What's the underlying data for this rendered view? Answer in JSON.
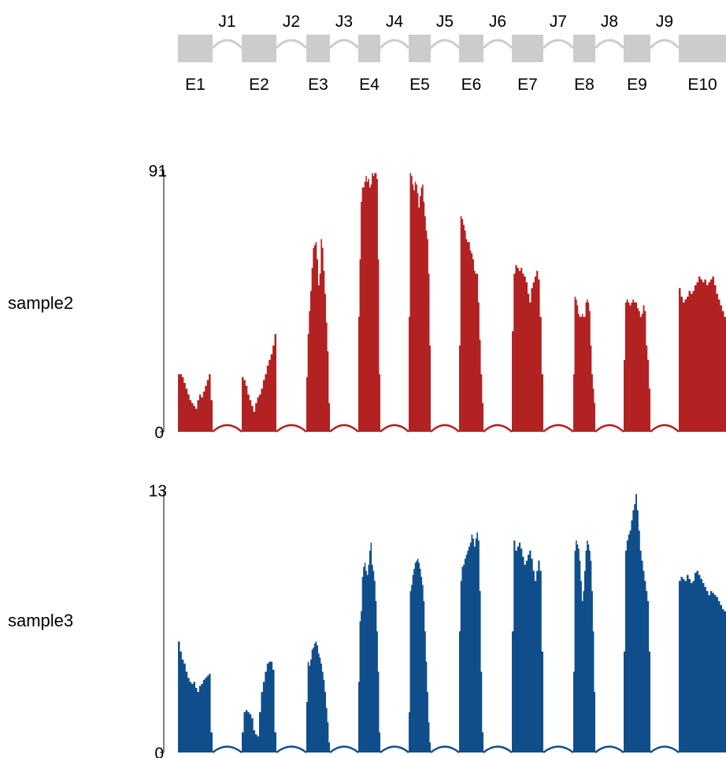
{
  "colors": {
    "exon": "#cccccc",
    "junction": "#cccccc",
    "sample2": "#b22222",
    "sample3": "#104e8b",
    "axis": "#000000"
  },
  "gene_model": {
    "exons": [
      "E1",
      "E2",
      "E3",
      "E4",
      "E5",
      "E6",
      "E7",
      "E8",
      "E9",
      "E10"
    ],
    "junctions": [
      "J1",
      "J2",
      "J3",
      "J4",
      "J5",
      "J6",
      "J7",
      "J8",
      "J9"
    ]
  },
  "chart_data": [
    {
      "type": "bar",
      "label": "sample2",
      "ylim": [
        0,
        91
      ],
      "yticks": [
        "0",
        "91"
      ],
      "color": "#b22222",
      "exon_coverage": [
        [
          20,
          20,
          19,
          17,
          15,
          13,
          11,
          10,
          9,
          8,
          11,
          13,
          12,
          14,
          16,
          18,
          20,
          11
        ],
        [
          19,
          18,
          16,
          13,
          11,
          9,
          7,
          10,
          12,
          13,
          15,
          18,
          20,
          23,
          25,
          27,
          30,
          34
        ],
        [
          19,
          34,
          42,
          49,
          57,
          64,
          65,
          66,
          60,
          51,
          55,
          67,
          64,
          56,
          48,
          38,
          28,
          10
        ],
        [
          40,
          60,
          80,
          85,
          85,
          87,
          89,
          87,
          88,
          85,
          86,
          90,
          89,
          90,
          90,
          88,
          60,
          20
        ],
        [
          40,
          90,
          89,
          86,
          84,
          87,
          86,
          83,
          78,
          82,
          85,
          86,
          80,
          75,
          70,
          67,
          55,
          30
        ],
        [
          30,
          75,
          74,
          72,
          70,
          67,
          66,
          66,
          63,
          62,
          60,
          56,
          55,
          55,
          45,
          32,
          20,
          10
        ],
        [
          35,
          55,
          58,
          57,
          56,
          57,
          55,
          54,
          52,
          48,
          45,
          50,
          52,
          54,
          56,
          53,
          40,
          20
        ],
        [
          20,
          47,
          46,
          44,
          41,
          40,
          40,
          41,
          40,
          40,
          45,
          46,
          45,
          42,
          30,
          20,
          15,
          10
        ],
        [
          25,
          45,
          46,
          45,
          44,
          45,
          46,
          45,
          45,
          43,
          42,
          40,
          41,
          44,
          42,
          30,
          25,
          15
        ],
        [
          50,
          47,
          45,
          46,
          47,
          49,
          48,
          49,
          51,
          52,
          54,
          53,
          52,
          53,
          51,
          52,
          53,
          54,
          51,
          48,
          46,
          44,
          42,
          40
        ]
      ],
      "junction_arcs": [
        3,
        3,
        3,
        3,
        3,
        3,
        3,
        3,
        3
      ]
    },
    {
      "type": "bar",
      "label": "sample3",
      "ylim": [
        0,
        13
      ],
      "yticks": [
        "0",
        "13"
      ],
      "color": "#104e8b",
      "exon_coverage": [
        [
          5.5,
          5.0,
          4.6,
          4.4,
          4.0,
          3.7,
          3.5,
          3.4,
          3.5,
          3.2,
          3.0,
          3.3,
          3.4,
          3.6,
          3.7,
          3.8,
          3.9,
          1.0
        ],
        [
          1.0,
          2.0,
          2.1,
          2.0,
          1.9,
          1.7,
          1.1,
          0.9,
          0.8,
          2.0,
          3.0,
          3.5,
          4.0,
          4.4,
          4.5,
          4.5,
          4.1,
          1.0
        ],
        [
          2.5,
          4.5,
          4.3,
          4.6,
          5.1,
          5.2,
          5.4,
          5.5,
          5.3,
          4.9,
          4.7,
          4.4,
          4.0,
          3.6,
          3.0,
          2.2,
          1.5,
          0.5
        ],
        [
          3.5,
          6.5,
          7.0,
          8.7,
          9.2,
          9.4,
          9.0,
          8.8,
          9.3,
          10.0,
          10.4,
          9.3,
          9.0,
          8.5,
          7.5,
          6.0,
          4.0,
          1.0
        ],
        [
          2.0,
          8.0,
          8.3,
          8.8,
          9.1,
          9.4,
          9.5,
          9.6,
          9.4,
          9.1,
          8.7,
          8.3,
          7.5,
          6.0,
          4.5,
          3.0,
          1.5,
          0.5
        ],
        [
          6.0,
          8.5,
          9.2,
          9.3,
          9.6,
          9.8,
          10.0,
          10.2,
          10.4,
          10.8,
          10.6,
          10.2,
          10.6,
          10.9,
          10.5,
          8.0,
          4.0,
          1.0
        ],
        [
          6.0,
          10.5,
          10.0,
          10.2,
          10.4,
          10.1,
          9.7,
          9.3,
          9.5,
          9.8,
          10.0,
          9.6,
          9.0,
          8.5,
          9.0,
          9.5,
          9.0,
          5.0
        ],
        [
          4.0,
          10.0,
          10.5,
          10.3,
          10.1,
          9.5,
          8.5,
          7.5,
          8.0,
          9.0,
          10.0,
          10.5,
          10.3,
          10.0,
          9.5,
          8.0,
          6.0,
          3.0
        ],
        [
          5.0,
          10.0,
          10.5,
          10.8,
          11.0,
          11.5,
          12.0,
          12.3,
          12.8,
          12.0,
          11.0,
          10.0,
          9.5,
          9.0,
          8.5,
          8.0,
          7.5,
          5.0
        ],
        [
          8.5,
          8.7,
          8.6,
          8.5,
          8.8,
          8.6,
          8.4,
          8.5,
          8.9,
          9.0,
          8.8,
          8.6,
          8.4,
          8.2,
          8.0,
          7.8,
          8.0,
          7.9,
          7.8,
          7.7,
          7.5,
          7.3,
          7.1,
          7.0
        ]
      ],
      "junction_arcs": [
        0.35,
        0.35,
        0.35,
        0.35,
        0.35,
        0.35,
        0.35,
        0.35,
        0.35
      ]
    }
  ]
}
